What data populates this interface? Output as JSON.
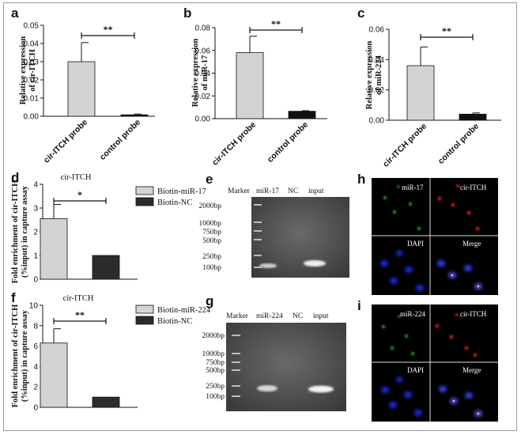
{
  "panel_letters": {
    "a": "a",
    "b": "b",
    "c": "c",
    "d": "d",
    "e": "e",
    "f": "f",
    "g": "g",
    "h": "h",
    "i": "i"
  },
  "chart_data": [
    {
      "type": "bar",
      "panel": "a",
      "categories": [
        "cir-ITCH probe",
        "control probe"
      ],
      "values": [
        0.03,
        0.0008
      ],
      "errors": [
        0.0105,
        0.0004
      ],
      "ylabel_line1": "Relative expression",
      "ylabel_line2": "of cir-ITCH",
      "ylim": [
        0,
        0.05
      ],
      "yticks": [
        "0.00",
        "0.01",
        "0.02",
        "0.03",
        "0.04",
        "0.05"
      ],
      "significance": "**",
      "colors": [
        "#d3d3d3",
        "#111111"
      ]
    },
    {
      "type": "bar",
      "panel": "b",
      "categories": [
        "cir-ITCH probe",
        "control probe"
      ],
      "values": [
        0.058,
        0.0065
      ],
      "errors": [
        0.0145,
        0.0005
      ],
      "ylabel_line1": "Relative expression",
      "ylabel_line2": "of miR-17",
      "ylim": [
        0,
        0.08
      ],
      "yticks": [
        "0.00",
        "0.02",
        "0.04",
        "0.06",
        "0.08"
      ],
      "significance": "**",
      "colors": [
        "#d3d3d3",
        "#111111"
      ]
    },
    {
      "type": "bar",
      "panel": "c",
      "categories": [
        "cir-ITCH probe",
        "control probe"
      ],
      "values": [
        0.036,
        0.004
      ],
      "errors": [
        0.0123,
        0.0008
      ],
      "ylabel_line1": "Relative expression",
      "ylabel_line2": "of miR-224",
      "ylim": [
        0,
        0.06
      ],
      "yticks": [
        "0.00",
        "0.02",
        "0.04",
        "0.06"
      ],
      "significance": "**",
      "colors": [
        "#d3d3d3",
        "#111111"
      ]
    },
    {
      "type": "bar",
      "panel": "d",
      "title": "cir-ITCH",
      "categories": [
        "Biotin-miR-17",
        "Biotin-NC"
      ],
      "values": [
        2.55,
        1.0
      ],
      "errors": [
        0.6,
        0
      ],
      "ylabel_line1": "Fold enrichment of cir-ITCH",
      "ylabel_line2": "(%input) in capture assay",
      "ylim": [
        0,
        4
      ],
      "yticks": [
        "0",
        "1",
        "2",
        "3",
        "4"
      ],
      "significance": "*",
      "legend": [
        "Biotin-miR-17",
        "Biotin-NC"
      ],
      "legend_position": "right",
      "colors": [
        "#d3d3d3",
        "#2b2b2b"
      ]
    },
    {
      "type": "bar",
      "panel": "f",
      "title": "cir-ITCH",
      "categories": [
        "Biotin-miR-224",
        "Biotin-NC"
      ],
      "values": [
        6.3,
        1.0
      ],
      "errors": [
        1.4,
        0
      ],
      "ylabel_line1": "Fold enrichment of cir-ITCH",
      "ylabel_line2": "(%input) in capture assay",
      "ylim": [
        0,
        10
      ],
      "yticks": [
        "0",
        "2",
        "4",
        "6",
        "8",
        "10"
      ],
      "significance": "**",
      "legend": [
        "Biotin-miR-224",
        "Biotin-NC"
      ],
      "legend_position": "right",
      "colors": [
        "#d3d3d3",
        "#2b2b2b"
      ]
    }
  ],
  "gels": {
    "e": {
      "lanes": [
        "Marker",
        "miR-17",
        "NC",
        "input"
      ],
      "markers": [
        "2000bp",
        "1000bp",
        "750bp",
        "500bp",
        "250bp",
        "100bp"
      ]
    },
    "g": {
      "lanes": [
        "Marker",
        "miR-224",
        "NC",
        "input"
      ],
      "markers": [
        "2000bp",
        "1000bp",
        "750bp",
        "500bp",
        "250bp",
        "100bp"
      ]
    }
  },
  "micrographs": {
    "h": {
      "labels": [
        "miR-17",
        "cir-ITCH",
        "DAPI",
        "Merge"
      ]
    },
    "i": {
      "labels": [
        "miR-224",
        "cir-ITCH",
        "DAPI",
        "Merge"
      ]
    }
  }
}
